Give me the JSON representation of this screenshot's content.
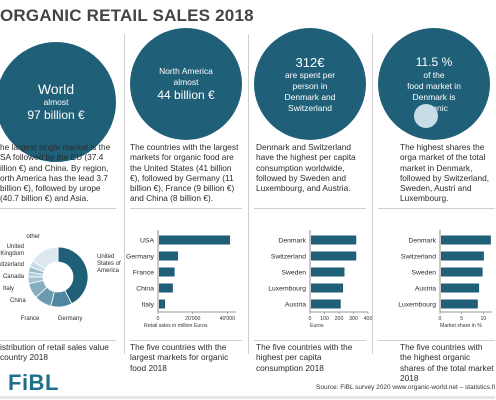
{
  "title": "ORGANIC RETAIL SALES 2018",
  "colors": {
    "primary": "#1f5f78",
    "light": "#8fb6c6",
    "pale": "#c9dde6"
  },
  "panels": [
    {
      "circle": {
        "line1": "World",
        "line2": "almost",
        "line3": "97 billion €"
      },
      "description": "he largest single market is the SA followed by the EU (37.4 illion €) and China. By region, orth America has the lead 3.7 billion €), followed by urope (40.7 billion €) and Asia.",
      "note": "istribution of retail sales value country 2018"
    },
    {
      "circle": {
        "line1": "North America",
        "line2": "almost",
        "line3": "44 billion €"
      },
      "description": "The countries with the largest markets for organic food are the United States (41 billion €), followed by Germany (11 billion €), France (9 billion €) and China (8 billion €).",
      "note": "The five countries with the largest markets for organic food 2018"
    },
    {
      "circle": {
        "line1": "312€",
        "line2": "are spent per person in",
        "line3": "Denmark and Switzerland"
      },
      "description": "Denmark and Switzerland have the highest per capita consumption worldwide, followed by Sweden and Luxembourg, and Austria.",
      "note": "The five countries with the highest per capita consumption 2018"
    },
    {
      "circle": {
        "line1": "11.5 %",
        "line2": "of the",
        "line3": "food market in Denmark is organic"
      },
      "description": "The highest shares the orga market of the total market in Denmark, followed by Switzerland, Sweden, Austri and Luxembourg.",
      "note": "The five countries with the highest organic shares of the total market 2018"
    }
  ],
  "chart_data": [
    {
      "type": "pie",
      "labels": [
        "United States of America",
        "Germany",
        "France",
        "China",
        "Italy",
        "United Kingdom",
        "Switzerland",
        "Canada",
        "other"
      ],
      "values": [
        41,
        11,
        9,
        8,
        3.5,
        2.6,
        2.7,
        3.4,
        15.4
      ]
    },
    {
      "type": "bar",
      "orientation": "horizontal",
      "categories": [
        "USA",
        "Germany",
        "France",
        "China",
        "Italy"
      ],
      "values": [
        41,
        11,
        9,
        8,
        3.5
      ],
      "xlabel": "Retail sales in million Euros",
      "xticks": [
        "0",
        "20'000",
        "40'000"
      ],
      "xlim": [
        0,
        45000
      ]
    },
    {
      "type": "bar",
      "orientation": "horizontal",
      "categories": [
        "Denmark",
        "Switzerland",
        "Sweden",
        "Luxembourg",
        "Austria"
      ],
      "values": [
        312,
        312,
        231,
        221,
        205
      ],
      "xlabel": "Euros",
      "xticks": [
        "0",
        "100",
        "200",
        "300",
        "400"
      ],
      "xlim": [
        0,
        400
      ]
    },
    {
      "type": "bar",
      "orientation": "horizontal",
      "categories": [
        "Denmark",
        "Switzerland",
        "Sweden",
        "Austria",
        "Luxembourg"
      ],
      "values": [
        11.5,
        9.9,
        9.6,
        8.8,
        8.5
      ],
      "xlabel": "Market share in %",
      "xticks": [
        "0",
        "5",
        "10"
      ],
      "xlim": [
        0,
        12
      ]
    }
  ],
  "footer": {
    "logo": "FiBL",
    "source": "Source: FiBL survey 2020  www.organic-world.net – statistics.fi"
  }
}
